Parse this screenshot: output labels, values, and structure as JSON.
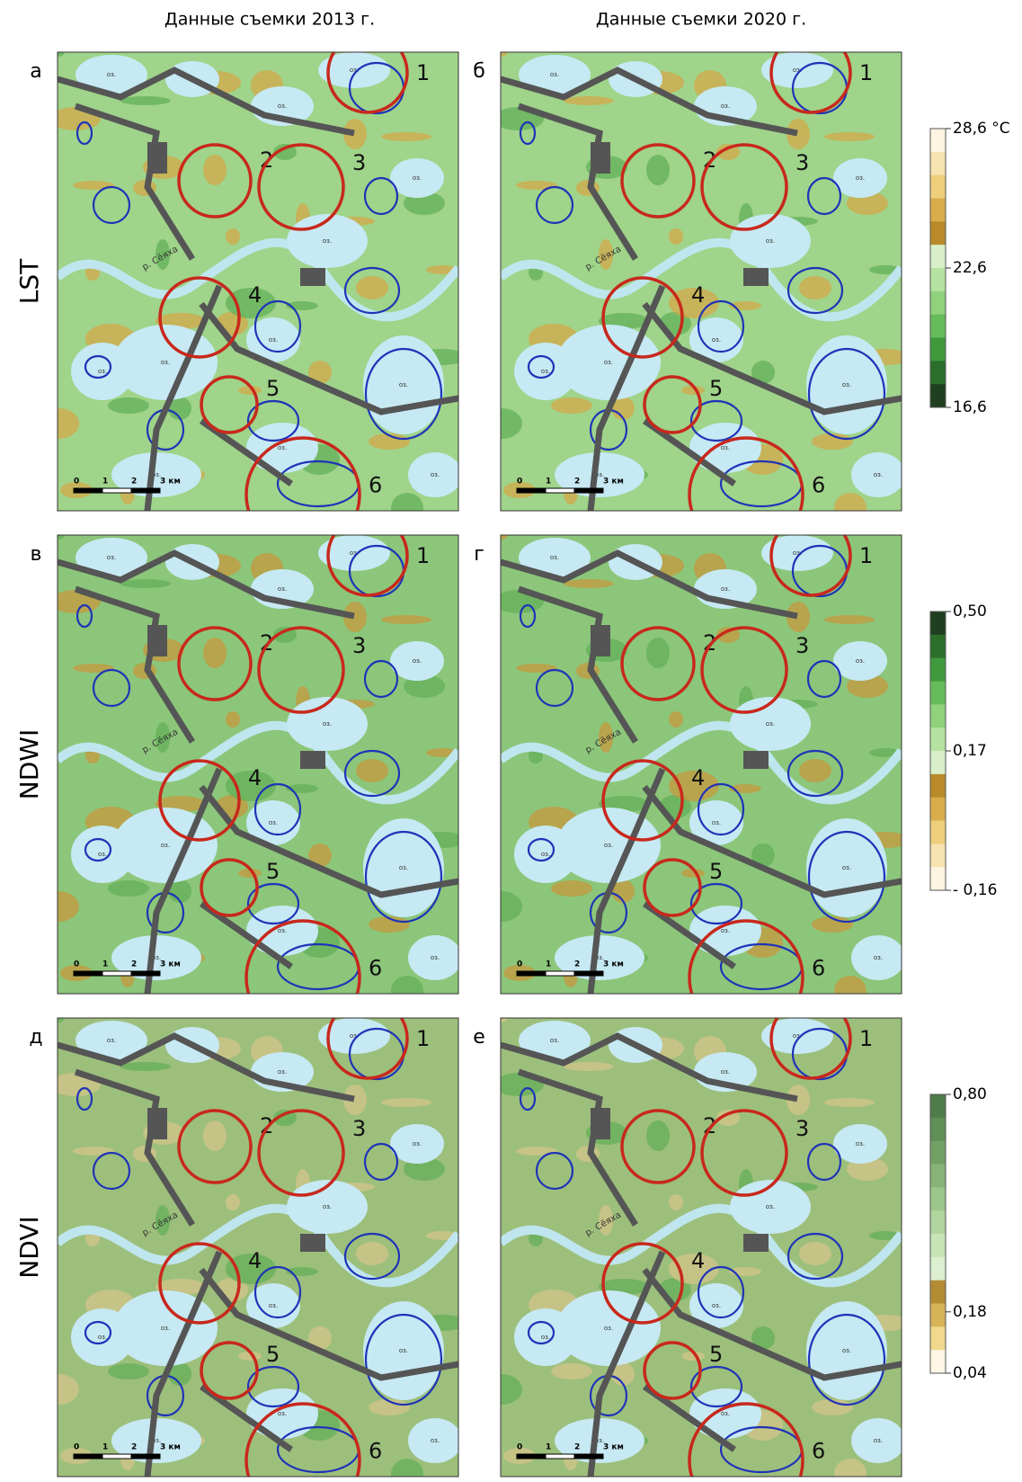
{
  "column_headers": [
    "Данные съемки 2013 г.",
    "Данные съемки 2020 г."
  ],
  "rows": [
    {
      "label": "LST",
      "panels": [
        {
          "letter": "а"
        },
        {
          "letter": "б"
        }
      ],
      "colorbar": {
        "labels": [
          "28,6 °C",
          "22,6",
          "16,6"
        ]
      }
    },
    {
      "label": "NDWI",
      "panels": [
        {
          "letter": "в"
        },
        {
          "letter": "г"
        }
      ],
      "colorbar": {
        "labels": [
          "0,50",
          "0,17",
          "- 0,16"
        ]
      }
    },
    {
      "label": "NDVI",
      "panels": [
        {
          "letter": "д"
        },
        {
          "letter": "е"
        }
      ],
      "colorbar": {
        "labels": [
          "0,80",
          "0,18",
          "0,04"
        ]
      }
    }
  ],
  "map": {
    "circles": [
      "1",
      "2",
      "3",
      "4",
      "5",
      "6"
    ],
    "lake_label": "оз.",
    "river_label": "р. Сёяха",
    "scale_labels": [
      "0",
      "1",
      "2",
      "3 км"
    ]
  }
}
